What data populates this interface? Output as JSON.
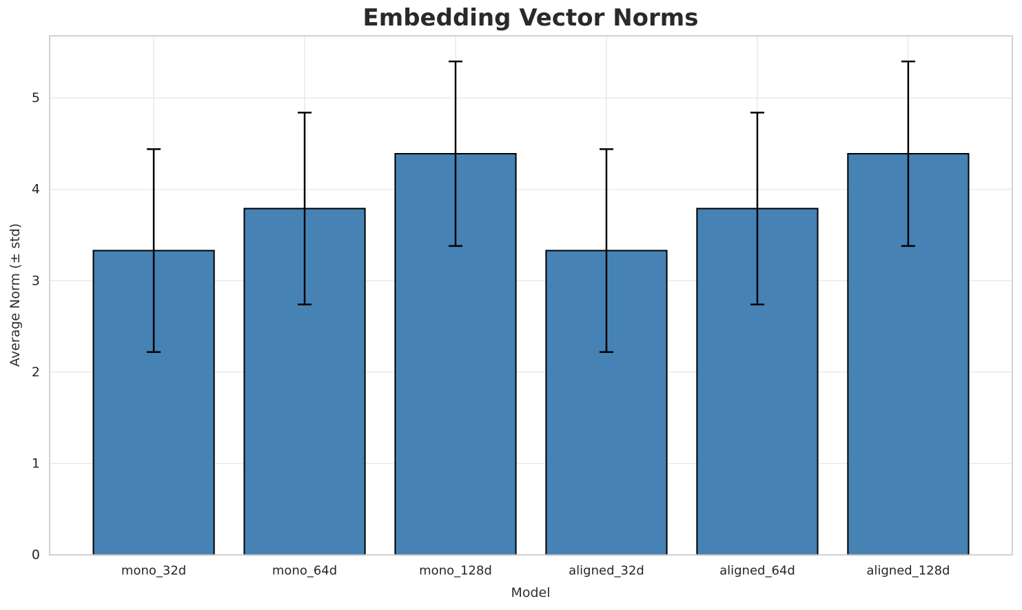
{
  "figure": {
    "background": "#ffffff"
  },
  "chart_data": {
    "type": "bar",
    "title": "Embedding Vector Norms",
    "xlabel": "Model",
    "ylabel": "Average Norm (± std)",
    "categories": [
      "mono_32d",
      "mono_64d",
      "mono_128d",
      "aligned_32d",
      "aligned_64d",
      "aligned_128d"
    ],
    "values": [
      3.33,
      3.79,
      4.39,
      3.33,
      3.79,
      4.39
    ],
    "errors": [
      1.11,
      1.05,
      1.01,
      1.11,
      1.05,
      1.01
    ],
    "yticks": [
      0,
      1,
      2,
      3,
      4,
      5
    ],
    "ylim": [
      0,
      5.68
    ],
    "grid": true,
    "legend": false,
    "bar_color": "#4682b4",
    "bar_edge_color": "#000000",
    "error_color": "#000000",
    "grid_color": "#e8e8e8",
    "spine_color": "#cccccc",
    "text_color": "#262626"
  }
}
